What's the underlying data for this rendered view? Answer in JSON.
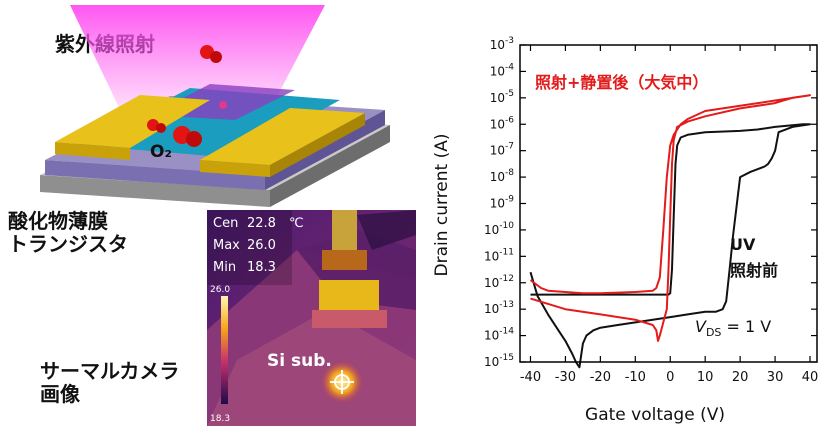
{
  "figure": {
    "uv_label": "紫外線照射",
    "molecule_label": "O₂",
    "device_label_line1": "酸化物薄膜",
    "device_label_line2": "トランジスタ",
    "thermal_label_line1": "サーマルカメラ",
    "thermal_label_line2": "画像"
  },
  "thermal_image": {
    "cen_label": "Cen",
    "cen_value": "22.8",
    "unit": "℃",
    "max_label": "Max",
    "max_value": "26.0",
    "min_label": "Min",
    "min_value": "18.3",
    "scale_top": "26.0",
    "scale_bottom": "18.3",
    "sample_label": "Si sub."
  },
  "chart_data": {
    "type": "line",
    "xlabel": "Gate voltage (V)",
    "ylabel": "Drain current (A)",
    "x_ticks": [
      -40,
      -30,
      -20,
      -10,
      0,
      10,
      20,
      30,
      40
    ],
    "xlim": [
      -43,
      42
    ],
    "ylim_log10": [
      -15,
      -3
    ],
    "y_tick_labels": [
      {
        "exp": -3,
        "label": "-3"
      },
      {
        "exp": -4,
        "label": "-4"
      },
      {
        "exp": -5,
        "label": "-5"
      },
      {
        "exp": -6,
        "label": "-6"
      },
      {
        "exp": -7,
        "label": "-7"
      },
      {
        "exp": -8,
        "label": "-8"
      },
      {
        "exp": -9,
        "label": "-9"
      },
      {
        "exp": -10,
        "label": "-10"
      },
      {
        "exp": -11,
        "label": "-11"
      },
      {
        "exp": -12,
        "label": "-12"
      },
      {
        "exp": -13,
        "label": "-13"
      },
      {
        "exp": -14,
        "label": "-14"
      },
      {
        "exp": -15,
        "label": "-15"
      }
    ],
    "y_tick_base": "10",
    "annotations": {
      "after_label": "照射+静置後（大気中）",
      "before_label_line1": "UV",
      "before_label_line2": "照射前",
      "vds_v": "V",
      "vds_sub": "DS",
      "vds_rest": " = 1 V"
    },
    "series": [
      {
        "key": "before",
        "color": "#111111",
        "x": [
          -40,
          -38,
          -35,
          -32,
          -30,
          -28,
          -27,
          -26,
          -25,
          -24,
          -22,
          -20,
          -15,
          -10,
          -5,
          0,
          5,
          10,
          13,
          15,
          16,
          17,
          18,
          20,
          23,
          25,
          27,
          28,
          29,
          30,
          31,
          35,
          40,
          38,
          30,
          25,
          20,
          10,
          5,
          3,
          2,
          1.5,
          1,
          0.5,
          0,
          -0.5,
          -5,
          -10,
          -20,
          -30,
          -40
        ],
        "log10y": [
          -11.6,
          -12.5,
          -13.2,
          -13.8,
          -14.2,
          -14.7,
          -15.0,
          -15.2,
          -14.3,
          -14.0,
          -13.8,
          -13.7,
          -13.6,
          -13.5,
          -13.4,
          -13.3,
          -13.2,
          -13.1,
          -13.1,
          -13.0,
          -12.7,
          -11.5,
          -10.2,
          -8.0,
          -7.8,
          -7.7,
          -7.6,
          -7.5,
          -7.3,
          -7.0,
          -6.3,
          -6.1,
          -6.0,
          -6.0,
          -6.1,
          -6.2,
          -6.25,
          -6.3,
          -6.4,
          -6.5,
          -6.8,
          -7.5,
          -9.5,
          -11.5,
          -12.4,
          -12.45,
          -12.45,
          -12.45,
          -12.45,
          -12.45,
          -12.45
        ]
      },
      {
        "key": "after",
        "color": "#e31b1b",
        "x": [
          -40,
          -37,
          -35,
          -30,
          -25,
          -20,
          -10,
          -5,
          -4,
          -3,
          -2,
          -1,
          0,
          1,
          3,
          5,
          10,
          20,
          30,
          40,
          35,
          30,
          20,
          10,
          5,
          2,
          1,
          0.5,
          0,
          -0.5,
          -1,
          -2,
          -3,
          -3.5,
          -4,
          -5,
          -10,
          -20,
          -30,
          -40
        ],
        "log10y": [
          -11.9,
          -12.2,
          -12.3,
          -12.35,
          -12.4,
          -12.4,
          -12.35,
          -12.3,
          -12.2,
          -11.8,
          -10.0,
          -8.0,
          -6.8,
          -6.4,
          -6.0,
          -5.8,
          -5.5,
          -5.3,
          -5.1,
          -4.9,
          -5.0,
          -5.2,
          -5.4,
          -5.7,
          -5.9,
          -6.1,
          -6.6,
          -7.5,
          -9.5,
          -11.5,
          -13.0,
          -13.5,
          -14.0,
          -14.2,
          -13.8,
          -13.6,
          -13.4,
          -13.2,
          -13.0,
          -12.6
        ]
      }
    ]
  }
}
